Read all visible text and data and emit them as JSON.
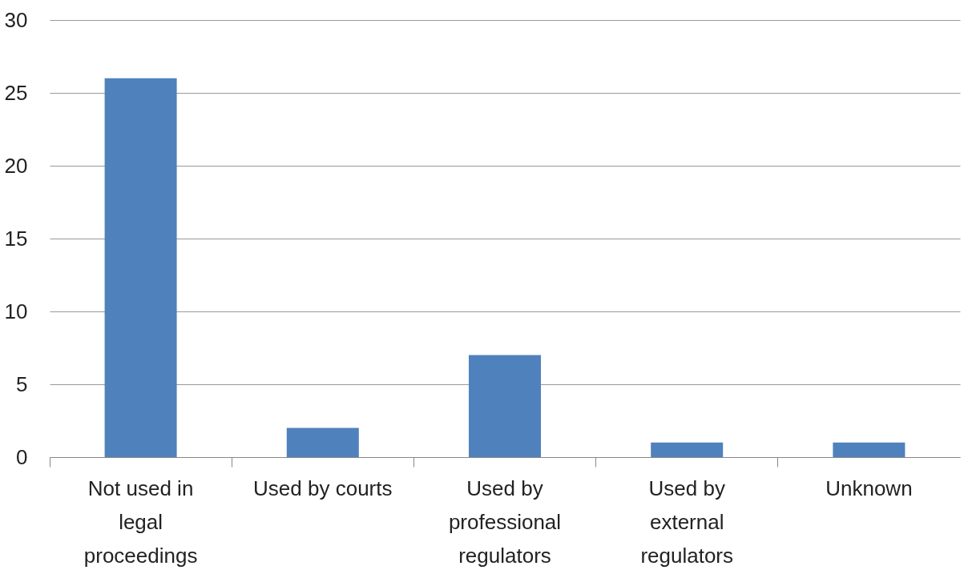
{
  "chart_data": {
    "type": "bar",
    "categories": [
      "Not used in legal proceedings",
      "Used by courts",
      "Used by professional regulators",
      "Used by external regulators",
      "Unknown"
    ],
    "values": [
      26,
      2,
      7,
      1,
      1
    ],
    "color": "#4f81bd",
    "ylim": [
      0,
      30
    ],
    "yticks": [
      0,
      5,
      10,
      15,
      20,
      25,
      30
    ],
    "grid": "y"
  }
}
